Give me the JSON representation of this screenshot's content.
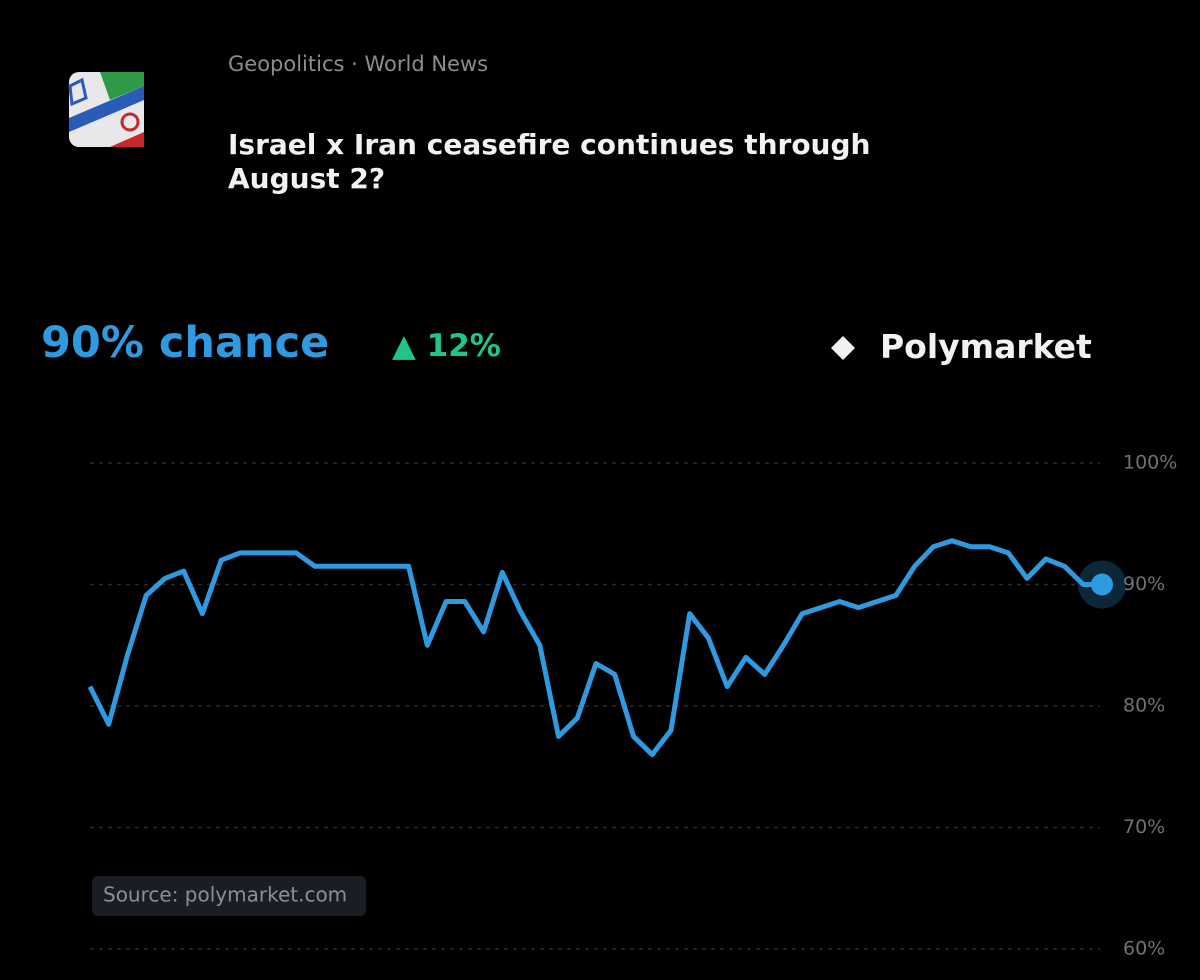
{
  "chart_data": {
    "type": "line",
    "category_label": "Geopolitics · World News",
    "title": "Israel x Iran ceasefire continues through August 2?",
    "headline": "90% chance",
    "change": "▲ 12%",
    "brand": "Polymarket",
    "source": "Source: polymarket.com",
    "color": "#2f9ae0",
    "grid": true,
    "ylim": [
      60,
      100
    ],
    "yticks": [
      {
        "value": 60,
        "label": "60%"
      },
      {
        "value": 70,
        "label": "70%"
      },
      {
        "value": 80,
        "label": "80%"
      },
      {
        "value": 90,
        "label": "90%"
      },
      {
        "value": 100,
        "label": "100%"
      }
    ],
    "values": [
      81.6,
      78.5,
      84.2,
      89.1,
      90.5,
      91.1,
      87.6,
      92.0,
      92.6,
      92.6,
      92.6,
      92.6,
      91.5,
      91.5,
      91.5,
      91.5,
      91.5,
      91.5,
      85.0,
      88.6,
      88.6,
      86.1,
      91.0,
      87.7,
      85.0,
      77.5,
      79.0,
      83.5,
      82.6,
      77.5,
      76.0,
      78.0,
      87.6,
      85.6,
      81.6,
      84.0,
      82.6,
      85.0,
      87.6,
      88.1,
      88.6,
      88.1,
      88.6,
      89.1,
      91.5,
      93.1,
      93.6,
      93.1,
      93.1,
      92.6,
      90.5,
      92.1,
      91.5,
      90.0,
      90.0
    ]
  }
}
